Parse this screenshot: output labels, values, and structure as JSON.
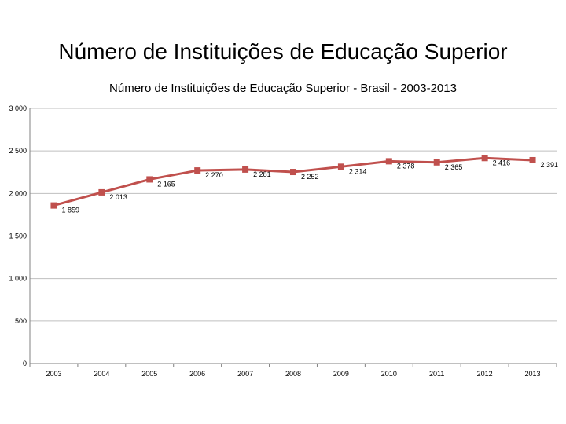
{
  "slide": {
    "title": "Número de Instituições de Educação Superior"
  },
  "chart_data": {
    "type": "line",
    "title": "Número de Instituições de Educação Superior - Brasil - 2003-2013",
    "xlabel": "",
    "ylabel": "",
    "categories": [
      "2003",
      "2004",
      "2005",
      "2006",
      "2007",
      "2008",
      "2009",
      "2010",
      "2011",
      "2012",
      "2013"
    ],
    "series": [
      {
        "values": [
          1859,
          2013,
          2165,
          2270,
          2281,
          2252,
          2314,
          2378,
          2365,
          2416,
          2391
        ],
        "labels": [
          "1 859",
          "2 013",
          "2 165",
          "2 270",
          "2 281",
          "2 252",
          "2 314",
          "2 378",
          "2 365",
          "2 416",
          "2 391"
        ],
        "color": "#c0504d"
      }
    ],
    "ylim": [
      0,
      3000
    ],
    "yticks": [
      0,
      500,
      1000,
      1500,
      2000,
      2500,
      3000
    ],
    "ytick_labels": [
      "0",
      "500",
      "1 000",
      "1 500",
      "2 000",
      "2 500",
      "3 000"
    ],
    "grid": true,
    "gridline_color": "#bfbfbf",
    "axis_color": "#808080",
    "legend": "none"
  }
}
